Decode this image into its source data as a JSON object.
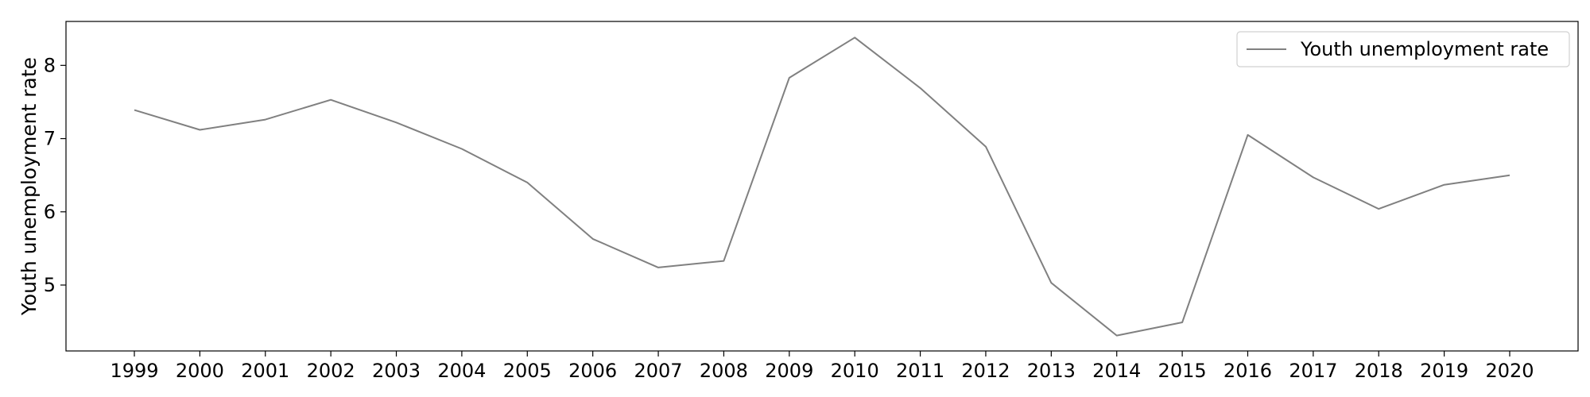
{
  "chart_data": {
    "type": "line",
    "title": "",
    "xlabel": "",
    "ylabel": "Youth unemployment rate",
    "x": [
      "1999",
      "2000",
      "2001",
      "2002",
      "2003",
      "2004",
      "2005",
      "2006",
      "2007",
      "2008",
      "2009",
      "2010",
      "2011",
      "2012",
      "2013",
      "2014",
      "2015",
      "2016",
      "2017",
      "2018",
      "2019",
      "2020"
    ],
    "yticks": [
      5,
      6,
      7,
      8
    ],
    "ylim": [
      4.1,
      8.6
    ],
    "grid": false,
    "legend_position": "top-right",
    "series": [
      {
        "name": "Youth unemployment rate",
        "color": "#808080",
        "values": [
          7.39,
          7.12,
          7.26,
          7.53,
          7.22,
          6.86,
          6.4,
          5.63,
          5.24,
          5.33,
          7.83,
          8.38,
          7.69,
          6.89,
          5.03,
          4.31,
          4.49,
          7.05,
          6.47,
          6.04,
          6.37,
          6.5
        ]
      }
    ]
  }
}
